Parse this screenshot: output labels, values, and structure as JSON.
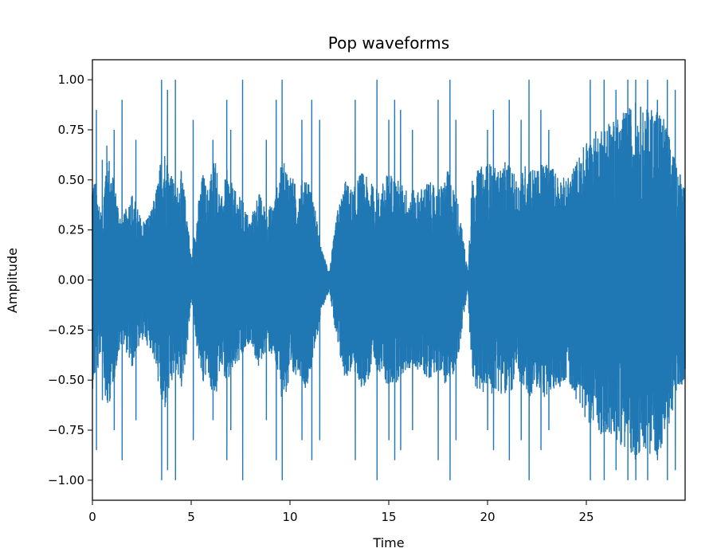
{
  "chart_data": {
    "type": "line",
    "title": "Pop waveforms",
    "xlabel": "Time",
    "ylabel": "Amplitude",
    "xlim": [
      0,
      30
    ],
    "ylim": [
      -1.1,
      1.1
    ],
    "xticks": [
      0,
      5,
      10,
      15,
      20,
      25
    ],
    "xtick_labels": [
      "0",
      "5",
      "10",
      "15",
      "20",
      "25"
    ],
    "yticks": [
      1.0,
      0.75,
      0.5,
      0.25,
      0.0,
      -0.25,
      -0.5,
      -0.75,
      -1.0
    ],
    "ytick_labels": [
      "1.00",
      "0.75",
      "0.50",
      "0.25",
      "0.00",
      "−0.25",
      "−0.50",
      "−0.75",
      "−1.00"
    ],
    "grid": false,
    "legend": "none",
    "series": [
      {
        "color": "#1f77b4",
        "envelope_time": [
          0,
          0.3,
          0.5,
          0.7,
          1.0,
          1.5,
          2.0,
          2.5,
          3.0,
          3.3,
          3.6,
          3.8,
          4.0,
          4.2,
          4.5,
          4.8,
          5.0,
          5.3,
          5.6,
          5.8,
          6.2,
          6.5,
          6.8,
          7.2,
          7.6,
          8.0,
          8.4,
          8.8,
          9.2,
          9.6,
          10.0,
          10.4,
          10.8,
          11.2,
          11.6,
          12.0,
          12.4,
          12.8,
          13.2,
          13.6,
          14.0,
          14.5,
          15.0,
          15.5,
          16.0,
          16.5,
          17.0,
          17.5,
          18.0,
          18.5,
          19.0,
          19.2,
          19.5,
          20.0,
          20.5,
          21.0,
          21.5,
          22.0,
          22.5,
          23.0,
          23.5,
          24.0,
          24.5,
          25.0,
          25.5,
          26.0,
          26.5,
          27.0,
          27.5,
          28.0,
          28.5,
          29.0,
          29.5,
          30.0
        ],
        "envelope_amplitude": [
          0.55,
          0.45,
          0.3,
          0.7,
          0.55,
          0.3,
          0.45,
          0.3,
          0.35,
          0.5,
          0.7,
          0.6,
          0.55,
          0.45,
          0.55,
          0.35,
          0.1,
          0.35,
          0.55,
          0.45,
          0.65,
          0.4,
          0.55,
          0.45,
          0.4,
          0.3,
          0.45,
          0.35,
          0.4,
          0.6,
          0.55,
          0.45,
          0.55,
          0.4,
          0.15,
          0.05,
          0.35,
          0.5,
          0.45,
          0.55,
          0.5,
          0.45,
          0.55,
          0.5,
          0.45,
          0.45,
          0.5,
          0.45,
          0.55,
          0.4,
          0.05,
          0.5,
          0.55,
          0.6,
          0.55,
          0.6,
          0.5,
          0.6,
          0.55,
          0.6,
          0.55,
          0.5,
          0.6,
          0.7,
          0.75,
          0.8,
          0.8,
          0.85,
          0.9,
          0.85,
          0.9,
          0.8,
          0.6,
          0.5
        ],
        "peak_times": [
          0.2,
          0.5,
          1.1,
          1.5,
          2.2,
          3.5,
          3.8,
          4.2,
          5.1,
          6.1,
          6.8,
          7.0,
          7.6,
          8.8,
          9.3,
          9.6,
          10.6,
          11.1,
          11.5,
          13.3,
          14.4,
          15.0,
          15.3,
          15.6,
          16.2,
          17.5,
          18.1,
          18.4,
          20.0,
          20.3,
          21.1,
          21.7,
          22.1,
          22.7,
          23.1,
          25.2,
          25.9,
          26.5,
          27.1,
          27.5,
          28.1,
          28.6,
          29.1,
          29.5
        ],
        "peak_amplitudes": [
          0.85,
          0.6,
          0.75,
          0.9,
          0.7,
          1.0,
          0.95,
          1.0,
          0.8,
          0.7,
          0.9,
          0.75,
          1.0,
          0.7,
          0.9,
          1.0,
          0.8,
          0.9,
          0.8,
          0.9,
          1.0,
          0.8,
          0.9,
          0.85,
          0.75,
          0.9,
          1.0,
          0.8,
          0.75,
          0.85,
          0.9,
          0.8,
          1.0,
          0.85,
          0.75,
          1.0,
          1.0,
          0.95,
          1.0,
          1.0,
          1.0,
          0.9,
          1.0,
          0.95
        ]
      }
    ]
  }
}
